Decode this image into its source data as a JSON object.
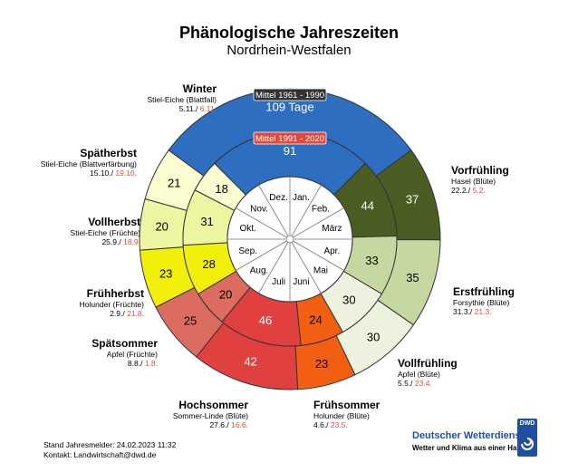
{
  "title": "Phänologische Jahreszeiten",
  "subtitle": "Nordrhein-Westfalen",
  "chart_data": {
    "type": "donut",
    "outer_ring": {
      "label": "Mittel 1961 - 1990",
      "label_color": "#333333",
      "segments": [
        {
          "season": "Winter",
          "days": 109,
          "display": "109 Tage",
          "color": "#2e6ec0"
        },
        {
          "season": "Vorfrühling",
          "days": 37,
          "color": "#4a5e23"
        },
        {
          "season": "Erstfrühling",
          "days": 35,
          "color": "#c4d8a0"
        },
        {
          "season": "Vollfrühling",
          "days": 30,
          "color": "#edf2df"
        },
        {
          "season": "Frühsommer",
          "days": 23,
          "color": "#f25f13"
        },
        {
          "season": "Hochsommer",
          "days": 42,
          "color": "#e04040"
        },
        {
          "season": "Spätsommer",
          "days": 25,
          "color": "#dc6b60"
        },
        {
          "season": "Frühherbst",
          "days": 23,
          "color": "#f2f00a"
        },
        {
          "season": "Vollherbst",
          "days": 20,
          "color": "#ecf5a0"
        },
        {
          "season": "Spätherbst",
          "days": 21,
          "color": "#fbfcd0"
        }
      ]
    },
    "inner_ring": {
      "label": "Mittel 1991 - 2020",
      "label_color": "#e04a3a",
      "segments": [
        {
          "season": "Winter",
          "days": 91,
          "color": "#2e6ec0"
        },
        {
          "season": "Vorfrühling",
          "days": 44,
          "color": "#4a5e23"
        },
        {
          "season": "Erstfrühling",
          "days": 33,
          "color": "#c4d8a0"
        },
        {
          "season": "Vollfrühling",
          "days": 30,
          "color": "#edf2df"
        },
        {
          "season": "Frühsommer",
          "days": 24,
          "color": "#f25f13"
        },
        {
          "season": "Hochsommer",
          "days": 46,
          "color": "#e04040"
        },
        {
          "season": "Spätsommer",
          "days": 20,
          "color": "#dc6b60"
        },
        {
          "season": "Frühherbst",
          "days": 28,
          "color": "#f2f00a"
        },
        {
          "season": "Vollherbst",
          "days": 31,
          "color": "#ecf5a0"
        },
        {
          "season": "Spätherbst",
          "days": 18,
          "color": "#fbfcd0"
        }
      ]
    },
    "months": [
      "Jan.",
      "Feb.",
      "März",
      "Apr.",
      "Mai",
      "Juni",
      "Juli",
      "Aug.",
      "Sep.",
      "Okt.",
      "Nov.",
      "Dez."
    ],
    "seasons": [
      {
        "name": "Winter",
        "indicator": "Stiel-Eiche (Blattfall)",
        "date_old": "5.11./",
        "date_new": "6.11."
      },
      {
        "name": "Vorfrühling",
        "indicator": "Hasel (Blüte)",
        "date_old": "22.2./",
        "date_new": "5.2."
      },
      {
        "name": "Erstfrühling",
        "indicator": "Forsythie (Blüte)",
        "date_old": "31.3./",
        "date_new": "21.3."
      },
      {
        "name": "Vollfrühling",
        "indicator": "Apfel (Blüte)",
        "date_old": "5.5./",
        "date_new": "23.4."
      },
      {
        "name": "Frühsommer",
        "indicator": "Holunder (Blüte)",
        "date_old": "4.6./",
        "date_new": "23.5."
      },
      {
        "name": "Hochsommer",
        "indicator": "Sommer-Linde (Blüte)",
        "date_old": "27.6./",
        "date_new": "16.6."
      },
      {
        "name": "Spätsommer",
        "indicator": "Apfel (Früchte)",
        "date_old": "8.8./",
        "date_new": "1.8."
      },
      {
        "name": "Frühherbst",
        "indicator": "Holunder (Früchte)",
        "date_old": "2.9./",
        "date_new": "21.8."
      },
      {
        "name": "Vollherbst",
        "indicator": "Stiel-Eiche (Früchte)",
        "date_old": "25.9./",
        "date_new": "18.9."
      },
      {
        "name": "Spätherbst",
        "indicator": "Stiel-Eiche (Blattverfärbung)",
        "date_old": "15.10./",
        "date_new": "19.10."
      }
    ],
    "date_new_color": "#e04a3a"
  },
  "footer": {
    "stand": "Stand Jahresmelder: 24.02.2023 11:32",
    "kontakt": "Kontakt: Landwirtschaft@dwd.de"
  },
  "brand": {
    "name": "Deutscher Wetterdienst",
    "slogan": "Wetter und Klima aus einer Hand",
    "logo_text": "DWD"
  }
}
